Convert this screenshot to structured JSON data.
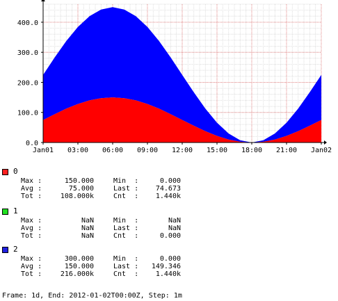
{
  "chart_data": {
    "type": "area",
    "x_ticks": [
      "Jan01",
      "03:00",
      "06:00",
      "09:00",
      "12:00",
      "15:00",
      "18:00",
      "21:00",
      "Jan02"
    ],
    "y_ticks": [
      "0.0",
      "100.0",
      "200.0",
      "300.0",
      "400.0"
    ],
    "ylim": [
      0,
      460
    ],
    "xlim_hours": [
      0,
      24
    ],
    "grid": true,
    "stacked": true,
    "series": [
      {
        "name": "0",
        "color": "#ff0000",
        "x": [
          0,
          1,
          2,
          3,
          4,
          5,
          6,
          7,
          8,
          9,
          10,
          11,
          12,
          13,
          14,
          15,
          16,
          17,
          18,
          19,
          20,
          21,
          22,
          23,
          24
        ],
        "values": [
          75,
          94.4,
          112.5,
          128.0,
          140.0,
          147.4,
          150,
          147.4,
          140.0,
          128.0,
          112.5,
          94.4,
          75,
          55.6,
          37.5,
          22.0,
          10.0,
          2.6,
          0,
          2.6,
          10.0,
          22.0,
          37.5,
          55.6,
          75
        ]
      },
      {
        "name": "1",
        "color": "#00ff00",
        "values": []
      },
      {
        "name": "2",
        "color": "#0000ff",
        "x": [
          0,
          1,
          2,
          3,
          4,
          5,
          6,
          7,
          8,
          9,
          10,
          11,
          12,
          13,
          14,
          15,
          16,
          17,
          18,
          19,
          20,
          21,
          22,
          23,
          24
        ],
        "values": [
          150,
          188.8,
          225.0,
          256.1,
          279.9,
          294.9,
          300,
          294.9,
          279.9,
          256.1,
          225.0,
          188.8,
          150,
          111.2,
          75.0,
          43.9,
          20.1,
          5.1,
          0,
          5.1,
          20.1,
          43.9,
          75.0,
          111.2,
          150
        ]
      }
    ]
  },
  "legend": [
    {
      "name": "0",
      "color": "#ff2020",
      "stats": [
        {
          "l1": "Max :",
          "v1": "150.000",
          "l2": "Min  :",
          "v2": "0.000"
        },
        {
          "l1": "Avg :",
          "v1": "75.000",
          "l2": "Last :",
          "v2": "74.673"
        },
        {
          "l1": "Tot :",
          "v1": "108.000k",
          "l2": "Cnt  :",
          "v2": "1.440k"
        }
      ]
    },
    {
      "name": "1",
      "color": "#20e020",
      "stats": [
        {
          "l1": "Max :",
          "v1": "NaN",
          "l2": "Min  :",
          "v2": "NaN"
        },
        {
          "l1": "Avg :",
          "v1": "NaN",
          "l2": "Last :",
          "v2": "NaN"
        },
        {
          "l1": "Tot :",
          "v1": "NaN",
          "l2": "Cnt  :",
          "v2": "0.000"
        }
      ]
    },
    {
      "name": "2",
      "color": "#2020e0",
      "stats": [
        {
          "l1": "Max :",
          "v1": "300.000",
          "l2": "Min  :",
          "v2": "0.000"
        },
        {
          "l1": "Avg :",
          "v1": "150.000",
          "l2": "Last :",
          "v2": "149.346"
        },
        {
          "l1": "Tot :",
          "v1": "216.000k",
          "l2": "Cnt  :",
          "v2": "1.440k"
        }
      ]
    }
  ],
  "footer": "Frame: 1d, End: 2012-01-02T00:00Z, Step: 1m"
}
